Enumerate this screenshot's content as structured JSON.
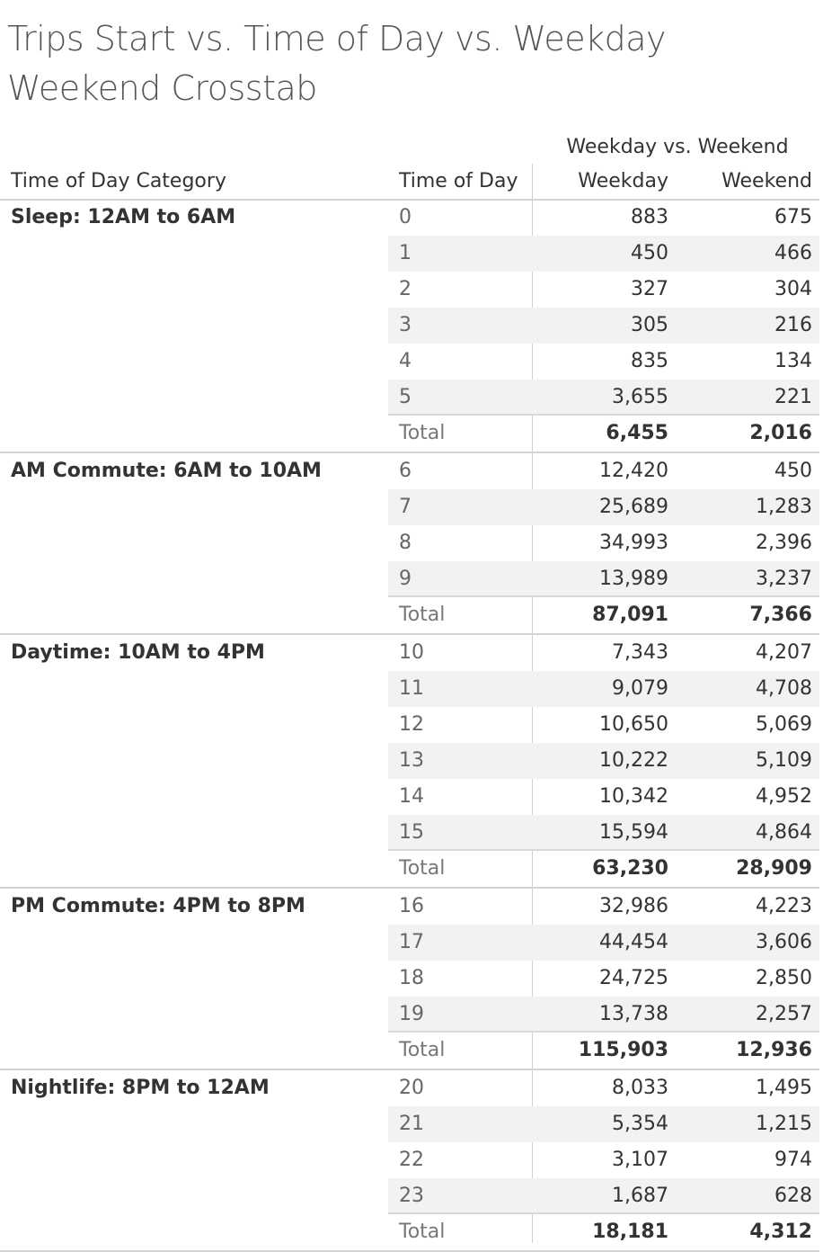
{
  "title": "Trips Start vs. Time of Day vs. Weekday Weekend Crosstab",
  "chart_data": {
    "type": "table",
    "title": "Trips Start vs. Time of Day vs. Weekday Weekend Crosstab",
    "column_group_header": "Weekday vs. Weekend",
    "headers": {
      "category": "Time of Day Category",
      "time_of_day": "Time of Day",
      "weekday": "Weekday",
      "weekend": "Weekend"
    },
    "groups": [
      {
        "category": "Sleep: 12AM to 6AM",
        "rows": [
          {
            "hour": "0",
            "weekday": "883",
            "weekend": "675"
          },
          {
            "hour": "1",
            "weekday": "450",
            "weekend": "466"
          },
          {
            "hour": "2",
            "weekday": "327",
            "weekend": "304"
          },
          {
            "hour": "3",
            "weekday": "305",
            "weekend": "216"
          },
          {
            "hour": "4",
            "weekday": "835",
            "weekend": "134"
          },
          {
            "hour": "5",
            "weekday": "3,655",
            "weekend": "221"
          }
        ],
        "total": {
          "label": "Total",
          "weekday": "6,455",
          "weekend": "2,016"
        }
      },
      {
        "category": "AM Commute: 6AM to 10AM",
        "rows": [
          {
            "hour": "6",
            "weekday": "12,420",
            "weekend": "450"
          },
          {
            "hour": "7",
            "weekday": "25,689",
            "weekend": "1,283"
          },
          {
            "hour": "8",
            "weekday": "34,993",
            "weekend": "2,396"
          },
          {
            "hour": "9",
            "weekday": "13,989",
            "weekend": "3,237"
          }
        ],
        "total": {
          "label": "Total",
          "weekday": "87,091",
          "weekend": "7,366"
        }
      },
      {
        "category": "Daytime: 10AM to 4PM",
        "rows": [
          {
            "hour": "10",
            "weekday": "7,343",
            "weekend": "4,207"
          },
          {
            "hour": "11",
            "weekday": "9,079",
            "weekend": "4,708"
          },
          {
            "hour": "12",
            "weekday": "10,650",
            "weekend": "5,069"
          },
          {
            "hour": "13",
            "weekday": "10,222",
            "weekend": "5,109"
          },
          {
            "hour": "14",
            "weekday": "10,342",
            "weekend": "4,952"
          },
          {
            "hour": "15",
            "weekday": "15,594",
            "weekend": "4,864"
          }
        ],
        "total": {
          "label": "Total",
          "weekday": "63,230",
          "weekend": "28,909"
        }
      },
      {
        "category": "PM Commute: 4PM to 8PM",
        "rows": [
          {
            "hour": "16",
            "weekday": "32,986",
            "weekend": "4,223"
          },
          {
            "hour": "17",
            "weekday": "44,454",
            "weekend": "3,606"
          },
          {
            "hour": "18",
            "weekday": "24,725",
            "weekend": "2,850"
          },
          {
            "hour": "19",
            "weekday": "13,738",
            "weekend": "2,257"
          }
        ],
        "total": {
          "label": "Total",
          "weekday": "115,903",
          "weekend": "12,936"
        }
      },
      {
        "category": "Nightlife: 8PM to 12AM",
        "rows": [
          {
            "hour": "20",
            "weekday": "8,033",
            "weekend": "1,495"
          },
          {
            "hour": "21",
            "weekday": "5,354",
            "weekend": "1,215"
          },
          {
            "hour": "22",
            "weekday": "3,107",
            "weekend": "974"
          },
          {
            "hour": "23",
            "weekday": "1,687",
            "weekend": "628"
          }
        ],
        "total": {
          "label": "Total",
          "weekday": "18,181",
          "weekend": "4,312"
        }
      }
    ]
  }
}
